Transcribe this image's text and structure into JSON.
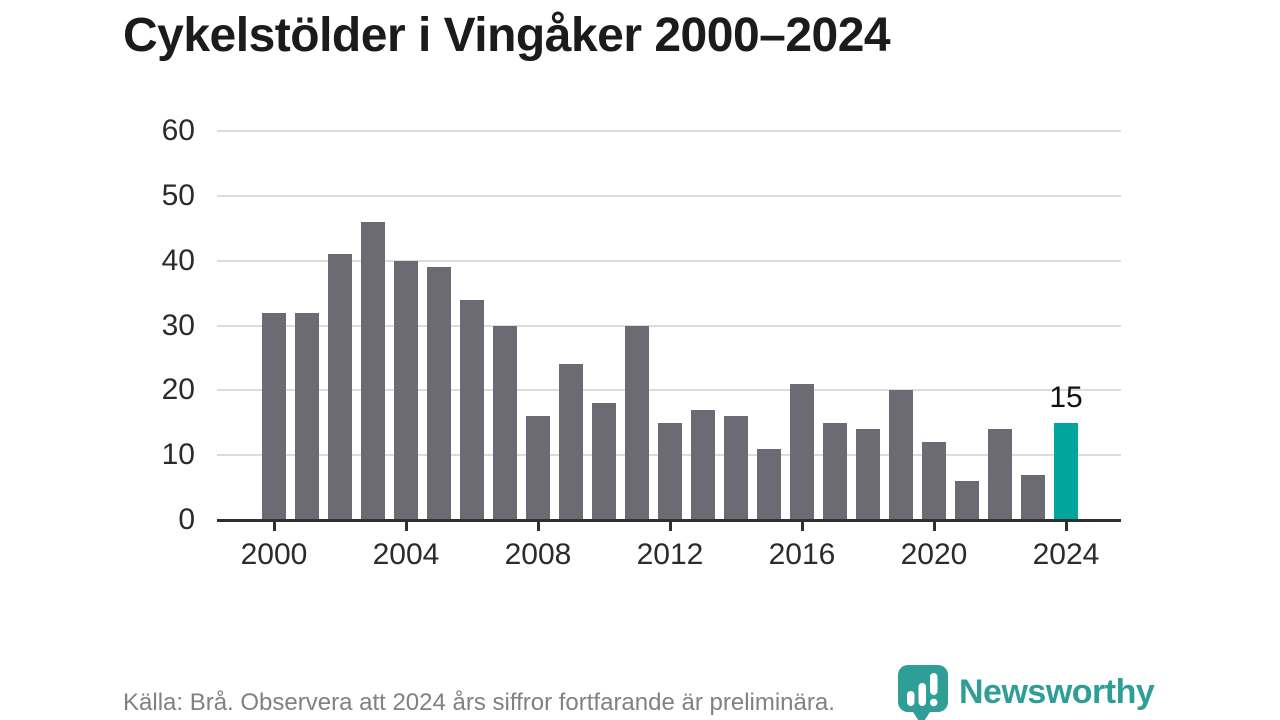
{
  "chart_data": {
    "type": "bar",
    "title": "Cykelstölder i Vingåker 2000–2024",
    "categories": [
      2000,
      2001,
      2002,
      2003,
      2004,
      2005,
      2006,
      2007,
      2008,
      2009,
      2010,
      2011,
      2012,
      2013,
      2014,
      2015,
      2016,
      2017,
      2018,
      2019,
      2020,
      2021,
      2022,
      2023,
      2024
    ],
    "values": [
      32,
      32,
      41,
      46,
      40,
      39,
      34,
      30,
      16,
      24,
      18,
      30,
      15,
      17,
      16,
      11,
      21,
      15,
      14,
      20,
      12,
      6,
      14,
      7,
      15
    ],
    "xlabel": "",
    "ylabel": "",
    "ylim": [
      0,
      60
    ],
    "yticks": [
      0,
      10,
      20,
      30,
      40,
      50,
      60
    ],
    "xticks": [
      2000,
      2004,
      2008,
      2012,
      2016,
      2020,
      2024
    ],
    "grid": "horizontal",
    "legend": "none",
    "bar_color": "#6c6b73",
    "highlight": {
      "index": 24,
      "label": "15",
      "color": "#00a59b"
    }
  },
  "footer": {
    "source_note": "Källa: Brå. Observera att 2024 års siffror fortfarande är preliminära.",
    "brand": "Newsworthy",
    "brand_color": "#2f9e96"
  }
}
